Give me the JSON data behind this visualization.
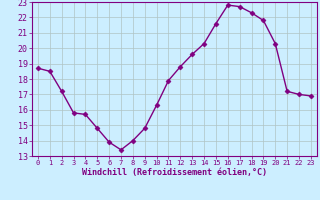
{
  "x": [
    0,
    1,
    2,
    3,
    4,
    5,
    6,
    7,
    8,
    9,
    10,
    11,
    12,
    13,
    14,
    15,
    16,
    17,
    18,
    19,
    20,
    21,
    22,
    23
  ],
  "y": [
    18.7,
    18.5,
    17.2,
    15.8,
    15.7,
    14.8,
    13.9,
    13.4,
    14.0,
    14.8,
    16.3,
    17.9,
    18.8,
    19.6,
    20.3,
    21.6,
    22.8,
    22.7,
    22.3,
    21.8,
    20.3,
    17.2,
    17.0,
    16.9
  ],
  "line_color": "#800080",
  "marker": "D",
  "marker_size": 2.5,
  "bg_color": "#cceeff",
  "grid_color": "#b0c4c4",
  "xlabel": "Windchill (Refroidissement éolien,°C)",
  "xlabel_color": "#800080",
  "tick_color": "#800080",
  "ylim": [
    13,
    23
  ],
  "xlim": [
    -0.5,
    23.5
  ],
  "yticks": [
    13,
    14,
    15,
    16,
    17,
    18,
    19,
    20,
    21,
    22,
    23
  ],
  "xticks": [
    0,
    1,
    2,
    3,
    4,
    5,
    6,
    7,
    8,
    9,
    10,
    11,
    12,
    13,
    14,
    15,
    16,
    17,
    18,
    19,
    20,
    21,
    22,
    23
  ],
  "line_width": 1.0
}
